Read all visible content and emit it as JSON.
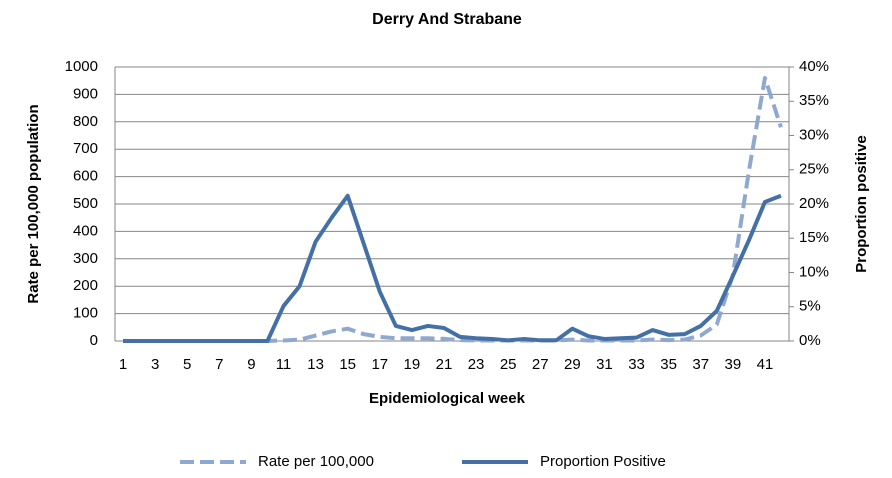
{
  "chart_data": {
    "type": "line",
    "title": "Derry And Strabane",
    "x_label": "Epidemiological week",
    "y_label": "Rate per 100,000 population",
    "y2_label": "Proportion positive",
    "categories": [
      1,
      null,
      3,
      null,
      5,
      null,
      7,
      null,
      9,
      null,
      11,
      null,
      13,
      null,
      15,
      null,
      17,
      null,
      19,
      null,
      21,
      null,
      23,
      null,
      25,
      null,
      27,
      null,
      29,
      null,
      31,
      null,
      33,
      null,
      35,
      null,
      37,
      null,
      39,
      null,
      41,
      null
    ],
    "series": [
      {
        "name": "Rate per 100,000",
        "color": "#8fa8d0",
        "line_style": "dashed",
        "values": [
          0,
          0,
          0,
          0,
          0,
          0,
          0,
          0,
          0,
          0,
          2,
          5,
          20,
          35,
          45,
          25,
          15,
          10,
          10,
          10,
          8,
          3,
          2,
          2,
          2,
          2,
          2,
          2,
          5,
          2,
          2,
          2,
          2,
          5,
          3,
          5,
          20,
          60,
          240,
          620,
          960,
          780
        ]
      },
      {
        "name": "Proportion Positive",
        "color": "#4470a5",
        "line_style": "solid",
        "axis": "y2",
        "values": [
          0,
          0,
          0,
          0,
          0,
          0,
          0,
          0,
          0,
          0,
          5.1,
          8,
          14.5,
          18,
          21.2,
          14.2,
          7.2,
          2.2,
          1.6,
          2.2,
          1.9,
          0.6,
          0.4,
          0.3,
          0.1,
          0.3,
          0.1,
          0.1,
          1.8,
          0.7,
          0.3,
          0.4,
          0.5,
          1.6,
          0.9,
          1.0,
          2.2,
          4.4,
          9.5,
          14.7,
          20.3,
          21.2
        ]
      }
    ],
    "ylim": [
      0,
      1000
    ],
    "yticks": [
      0,
      100,
      200,
      300,
      400,
      500,
      600,
      700,
      800,
      900,
      1000
    ],
    "y2lim": [
      0,
      40
    ],
    "y2ticks": [
      {
        "value": 0,
        "label": "0%"
      },
      {
        "value": 5,
        "label": "5%"
      },
      {
        "value": 10,
        "label": "10%"
      },
      {
        "value": 15,
        "label": "15%"
      },
      {
        "value": 20,
        "label": "20%"
      },
      {
        "value": 25,
        "label": "25%"
      },
      {
        "value": 30,
        "label": "30%"
      },
      {
        "value": 35,
        "label": "35%"
      },
      {
        "value": 40,
        "label": "40%"
      }
    ],
    "grid": true,
    "legend": "bottom"
  }
}
